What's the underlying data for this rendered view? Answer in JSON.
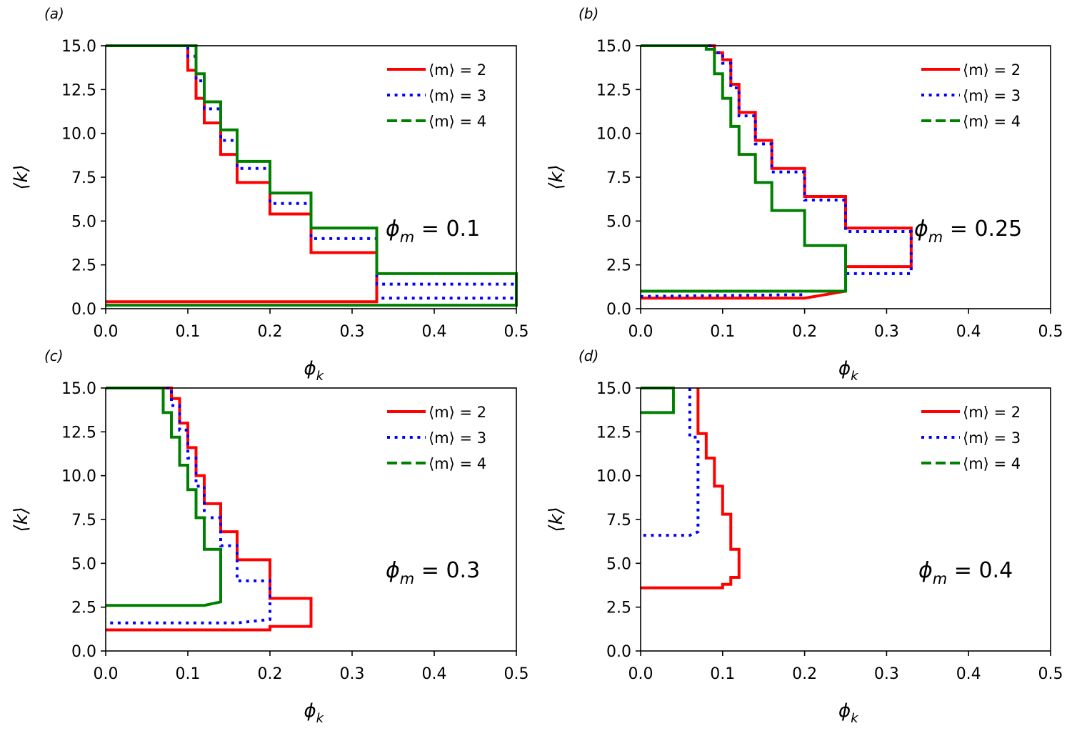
{
  "figure": {
    "colors": {
      "m2": "#ff0000",
      "m3": "#0000ff",
      "m4": "#008000",
      "axis": "#000000"
    }
  },
  "chart_data": [
    {
      "type": "line",
      "panel_label": "(a)",
      "annotation": "ϕm = 0.1",
      "annotation_parts": {
        "base": "ϕ",
        "sub": "m",
        "rest": " = 0.1"
      },
      "xlabel_parts": {
        "base": "ϕ",
        "sub": "k"
      },
      "ylabel": "⟨k⟩",
      "xlim": [
        0,
        0.5
      ],
      "ylim": [
        0,
        15
      ],
      "xticks": [
        0.0,
        0.1,
        0.2,
        0.3,
        0.4,
        0.5
      ],
      "xtick_labels": [
        "0.0",
        "0.1",
        "0.2",
        "0.3",
        "0.4",
        "0.5"
      ],
      "yticks": [
        0.0,
        2.5,
        5.0,
        7.5,
        10.0,
        12.5,
        15.0
      ],
      "ytick_labels": [
        "0.0",
        "2.5",
        "5.0",
        "7.5",
        "10.0",
        "12.5",
        "15.0"
      ],
      "legend": {
        "position": "top-right",
        "entries": [
          "⟨m⟩ = 2",
          "⟨m⟩ = 3",
          "⟨m⟩ = 4"
        ]
      },
      "series": [
        {
          "name": "⟨m⟩ = 2",
          "color_key": "m2",
          "style": "solid",
          "x": [
            0,
            0.1,
            0.1,
            0.11,
            0.11,
            0.12,
            0.12,
            0.14,
            0.14,
            0.16,
            0.16,
            0.2,
            0.2,
            0.25,
            0.25,
            0.33,
            0.33,
            0.33,
            0.0
          ],
          "y": [
            15,
            15,
            13.6,
            13.6,
            12.0,
            12.0,
            10.6,
            10.6,
            8.8,
            8.8,
            7.2,
            7.2,
            5.4,
            5.4,
            3.2,
            3.2,
            0.6,
            0.4,
            0.4
          ]
        },
        {
          "name": "⟨m⟩ = 3",
          "color_key": "m3",
          "style": "dotted",
          "x": [
            0,
            0.1,
            0.1,
            0.11,
            0.11,
            0.12,
            0.12,
            0.14,
            0.14,
            0.16,
            0.16,
            0.2,
            0.2,
            0.25,
            0.25,
            0.33,
            0.33,
            0.5,
            0.5,
            0.33
          ],
          "y": [
            15,
            15,
            14.4,
            14.4,
            13.0,
            13.0,
            11.4,
            11.4,
            9.6,
            9.6,
            8.0,
            8.0,
            6.0,
            6.0,
            4.0,
            4.0,
            1.4,
            1.4,
            0.6,
            0.6
          ]
        },
        {
          "name": "⟨m⟩ = 4",
          "color_key": "m4",
          "style": "solid",
          "x": [
            0,
            0.11,
            0.11,
            0.12,
            0.12,
            0.14,
            0.14,
            0.16,
            0.16,
            0.2,
            0.2,
            0.25,
            0.25,
            0.33,
            0.33,
            0.5,
            0.5,
            0.33,
            0.33,
            0.0
          ],
          "y": [
            15,
            15,
            13.4,
            13.4,
            11.8,
            11.8,
            10.2,
            10.2,
            8.4,
            8.4,
            6.6,
            6.6,
            4.6,
            4.6,
            2.0,
            2.0,
            0.2,
            0.2,
            0.2,
            0.2
          ]
        }
      ]
    },
    {
      "type": "line",
      "panel_label": "(b)",
      "annotation": "ϕm = 0.25",
      "annotation_parts": {
        "base": "ϕ",
        "sub": "m",
        "rest": " = 0.25"
      },
      "xlabel_parts": {
        "base": "ϕ",
        "sub": "k"
      },
      "ylabel": "⟨k⟩",
      "xlim": [
        0,
        0.5
      ],
      "ylim": [
        0,
        15
      ],
      "xticks": [
        0.0,
        0.1,
        0.2,
        0.3,
        0.4,
        0.5
      ],
      "xtick_labels": [
        "0.0",
        "0.1",
        "0.2",
        "0.3",
        "0.4",
        "0.5"
      ],
      "yticks": [
        0.0,
        2.5,
        5.0,
        7.5,
        10.0,
        12.5,
        15.0
      ],
      "ytick_labels": [
        "0.0",
        "2.5",
        "5.0",
        "7.5",
        "10.0",
        "12.5",
        "15.0"
      ],
      "legend": {
        "position": "top-right",
        "entries": [
          "⟨m⟩ = 2",
          "⟨m⟩ = 3",
          "⟨m⟩ = 4"
        ]
      },
      "series": [
        {
          "name": "⟨m⟩ = 2",
          "color_key": "m2",
          "style": "solid",
          "x": [
            0,
            0.09,
            0.09,
            0.1,
            0.1,
            0.11,
            0.11,
            0.12,
            0.12,
            0.14,
            0.14,
            0.16,
            0.16,
            0.2,
            0.2,
            0.25,
            0.25,
            0.33,
            0.33,
            0.25,
            0.25,
            0.2,
            0.0
          ],
          "y": [
            15,
            15,
            14.6,
            14.6,
            14.2,
            14.2,
            12.8,
            12.8,
            11.2,
            11.2,
            9.6,
            9.6,
            8.0,
            8.0,
            6.4,
            6.4,
            4.6,
            4.6,
            2.4,
            2.4,
            1.0,
            0.6,
            0.6
          ]
        },
        {
          "name": "⟨m⟩ = 3",
          "color_key": "m3",
          "style": "dotted",
          "x": [
            0,
            0.09,
            0.09,
            0.1,
            0.1,
            0.11,
            0.11,
            0.12,
            0.12,
            0.14,
            0.14,
            0.16,
            0.16,
            0.2,
            0.2,
            0.25,
            0.25,
            0.33,
            0.33,
            0.25,
            0.25,
            0.2,
            0.2,
            0.0
          ],
          "y": [
            15,
            15,
            14.6,
            14.6,
            14.0,
            14.0,
            12.6,
            12.6,
            11.0,
            11.0,
            9.4,
            9.4,
            7.8,
            7.8,
            6.2,
            6.2,
            4.4,
            4.4,
            2.0,
            2.0,
            1.0,
            1.0,
            0.8,
            0.7
          ]
        },
        {
          "name": "⟨m⟩ = 4",
          "color_key": "m4",
          "style": "solid",
          "x": [
            0,
            0.08,
            0.08,
            0.09,
            0.09,
            0.1,
            0.1,
            0.11,
            0.11,
            0.12,
            0.12,
            0.14,
            0.14,
            0.16,
            0.16,
            0.2,
            0.2,
            0.25,
            0.25,
            0.0
          ],
          "y": [
            15,
            15,
            14.8,
            14.8,
            13.4,
            13.4,
            12.0,
            12.0,
            10.4,
            10.4,
            8.8,
            8.8,
            7.2,
            7.2,
            5.6,
            5.6,
            3.6,
            3.6,
            1.0,
            1.0
          ]
        }
      ]
    },
    {
      "type": "line",
      "panel_label": "(c)",
      "annotation": "ϕm = 0.3",
      "annotation_parts": {
        "base": "ϕ",
        "sub": "m",
        "rest": " = 0.3"
      },
      "xlabel_parts": {
        "base": "ϕ",
        "sub": "k"
      },
      "ylabel": "⟨k⟩",
      "xlim": [
        0,
        0.5
      ],
      "ylim": [
        0,
        15
      ],
      "xticks": [
        0.0,
        0.1,
        0.2,
        0.3,
        0.4,
        0.5
      ],
      "xtick_labels": [
        "0.0",
        "0.1",
        "0.2",
        "0.3",
        "0.4",
        "0.5"
      ],
      "yticks": [
        0.0,
        2.5,
        5.0,
        7.5,
        10.0,
        12.5,
        15.0
      ],
      "ytick_labels": [
        "0.0",
        "2.5",
        "5.0",
        "7.5",
        "10.0",
        "12.5",
        "15.0"
      ],
      "legend": {
        "position": "top-right",
        "entries": [
          "⟨m⟩ = 2",
          "⟨m⟩ = 3",
          "⟨m⟩ = 4"
        ]
      },
      "series": [
        {
          "name": "⟨m⟩ = 2",
          "color_key": "m2",
          "style": "solid",
          "x": [
            0,
            0.08,
            0.08,
            0.09,
            0.09,
            0.1,
            0.1,
            0.11,
            0.11,
            0.12,
            0.12,
            0.14,
            0.14,
            0.16,
            0.16,
            0.2,
            0.2,
            0.25,
            0.25,
            0.2,
            0.2,
            0.0
          ],
          "y": [
            15,
            15,
            14.4,
            14.4,
            13.0,
            13.0,
            11.6,
            11.6,
            10.0,
            10.0,
            8.4,
            8.4,
            6.8,
            6.8,
            5.2,
            5.2,
            3.0,
            3.0,
            1.4,
            1.4,
            1.2,
            1.2
          ]
        },
        {
          "name": "⟨m⟩ = 3",
          "color_key": "m3",
          "style": "dotted",
          "x": [
            0,
            0.08,
            0.08,
            0.09,
            0.09,
            0.1,
            0.1,
            0.11,
            0.11,
            0.12,
            0.12,
            0.14,
            0.14,
            0.16,
            0.16,
            0.2,
            0.2,
            0.16,
            0.0
          ],
          "y": [
            15,
            15,
            14.0,
            14.0,
            12.6,
            12.6,
            11.0,
            11.0,
            9.4,
            9.4,
            7.6,
            7.6,
            6.0,
            6.0,
            4.0,
            4.0,
            1.8,
            1.6,
            1.6
          ]
        },
        {
          "name": "⟨m⟩ = 4",
          "color_key": "m4",
          "style": "solid",
          "x": [
            0,
            0.07,
            0.07,
            0.08,
            0.08,
            0.09,
            0.09,
            0.1,
            0.1,
            0.11,
            0.11,
            0.12,
            0.12,
            0.14,
            0.14,
            0.12,
            0.0
          ],
          "y": [
            15,
            15,
            13.6,
            13.6,
            12.2,
            12.2,
            10.6,
            10.6,
            9.2,
            9.2,
            7.6,
            7.6,
            5.8,
            5.8,
            2.8,
            2.6,
            2.6
          ]
        }
      ]
    },
    {
      "type": "line",
      "panel_label": "(d)",
      "annotation": "ϕm = 0.4",
      "annotation_parts": {
        "base": "ϕ",
        "sub": "m",
        "rest": " = 0.4"
      },
      "xlabel_parts": {
        "base": "ϕ",
        "sub": "k"
      },
      "ylabel": "⟨k⟩",
      "xlim": [
        0,
        0.5
      ],
      "ylim": [
        0,
        15
      ],
      "xticks": [
        0.0,
        0.1,
        0.2,
        0.3,
        0.4,
        0.5
      ],
      "xtick_labels": [
        "0.0",
        "0.1",
        "0.2",
        "0.3",
        "0.4",
        "0.5"
      ],
      "yticks": [
        0.0,
        2.5,
        5.0,
        7.5,
        10.0,
        12.5,
        15.0
      ],
      "ytick_labels": [
        "0.0",
        "2.5",
        "5.0",
        "7.5",
        "10.0",
        "12.5",
        "15.0"
      ],
      "legend": {
        "position": "top-right",
        "entries": [
          "⟨m⟩ = 2",
          "⟨m⟩ = 3",
          "⟨m⟩ = 4"
        ]
      },
      "series": [
        {
          "name": "⟨m⟩ = 2",
          "color_key": "m2",
          "style": "solid",
          "x": [
            0.07,
            0.07,
            0.08,
            0.08,
            0.09,
            0.09,
            0.1,
            0.1,
            0.11,
            0.11,
            0.12,
            0.12,
            0.11,
            0.11,
            0.1,
            0.1,
            0.0
          ],
          "y": [
            15,
            12.4,
            12.4,
            11.0,
            11.0,
            9.4,
            9.4,
            7.8,
            7.8,
            5.8,
            5.8,
            4.2,
            4.2,
            3.8,
            3.8,
            3.6,
            3.6
          ]
        },
        {
          "name": "⟨m⟩ = 3",
          "color_key": "m3",
          "style": "dotted",
          "x": [
            0.06,
            0.06,
            0.07,
            0.07,
            0.06,
            0.0
          ],
          "y": [
            15,
            12.2,
            12.2,
            6.8,
            6.6,
            6.6
          ]
        },
        {
          "name": "⟨m⟩ = 4",
          "color_key": "m4",
          "style": "solid",
          "x": [
            0,
            0.04,
            0.04,
            0.0
          ],
          "y": [
            15,
            15,
            13.6,
            13.6
          ]
        }
      ]
    }
  ]
}
